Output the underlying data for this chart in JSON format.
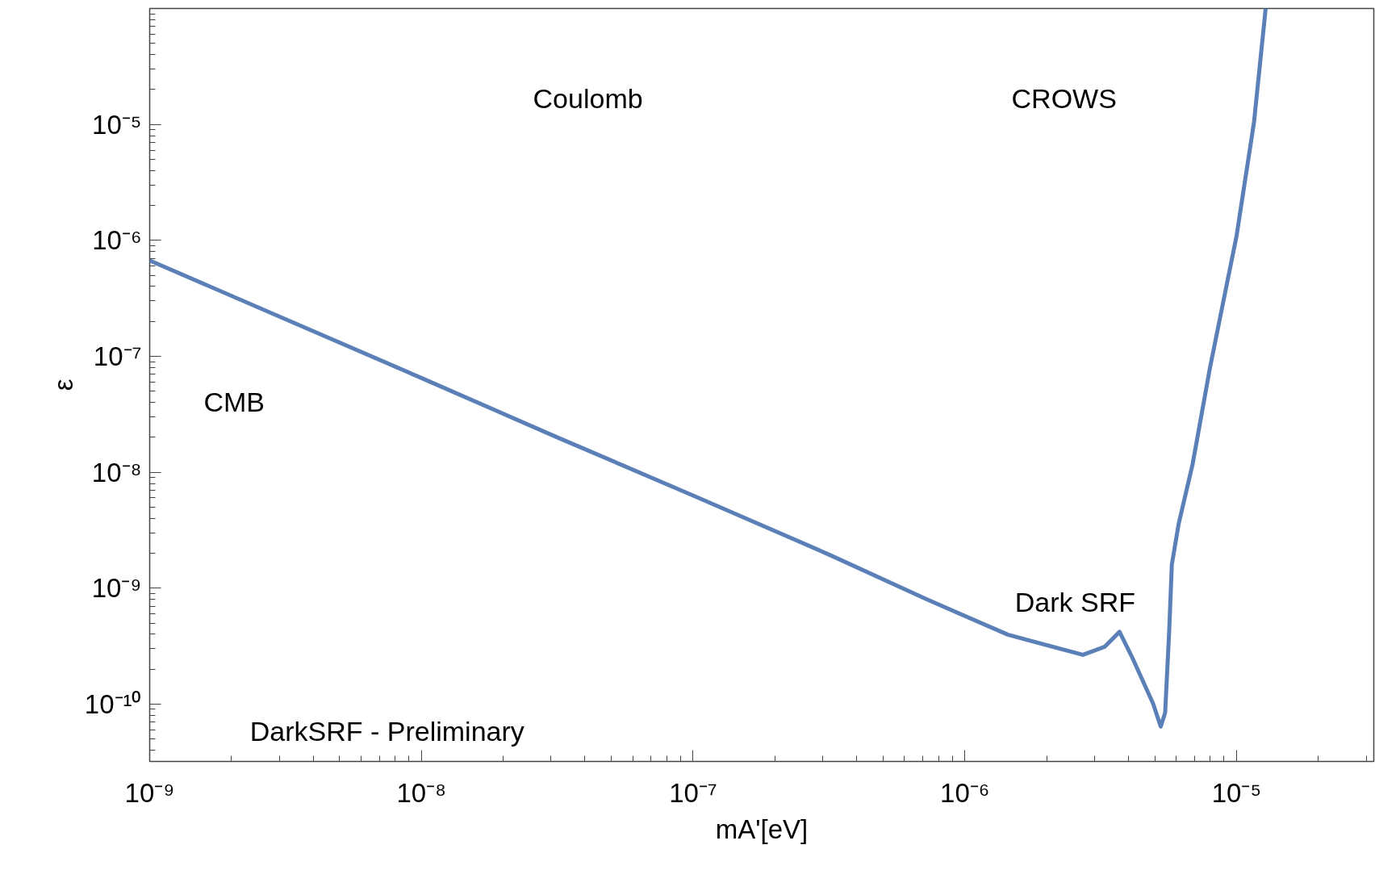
{
  "chart_data": {
    "type": "line",
    "xlabel": "mA'[eV]",
    "ylabel": "ε",
    "log": "xy",
    "x": [
      1e-09,
      3.16e-09,
      1e-08,
      3.16e-08,
      1e-07,
      3.16e-07,
      7.26e-07,
      1.44e-06,
      2.72e-06,
      3.27e-06,
      3.71e-06,
      4.11e-06,
      4.93e-06,
      5.26e-06,
      5.46e-06,
      5.65e-06,
      5.78e-06,
      6.12e-06,
      6.89e-06,
      7.98e-06,
      1e-05,
      1.16e-05,
      1.28e-05
    ],
    "series": [
      {
        "color": "#5b80b8",
        "values": [
          6.7e-07,
          2.09e-07,
          6.5e-08,
          2e-08,
          6.3e-09,
          1.95e-09,
          7.98e-10,
          3.97e-10,
          2.66e-10,
          3.12e-10,
          4.2e-10,
          2.59e-10,
          1.01e-10,
          6.4e-11,
          8.4e-11,
          4.2e-10,
          1.6e-09,
          3.56e-09,
          1.17e-08,
          7.9e-08,
          1.09e-06,
          1.05e-05,
          0.0001
        ]
      }
    ],
    "xlim": [
      1e-09,
      3.2e-05
    ],
    "ylim": [
      3.2e-11,
      0.0001
    ],
    "xticks": [
      {
        "value": 1e-09,
        "label": "10⁻⁹"
      },
      {
        "value": 1e-08,
        "label": "10⁻⁸"
      },
      {
        "value": 1e-07,
        "label": "10⁻⁷"
      },
      {
        "value": 1e-06,
        "label": "10⁻⁶"
      },
      {
        "value": 1e-05,
        "label": "10⁻⁵"
      }
    ],
    "yticks": [
      {
        "value": 1e-10,
        "label": "10⁻¹⁰"
      },
      {
        "value": 1e-09,
        "label": "10⁻⁹"
      },
      {
        "value": 1e-08,
        "label": "10⁻⁸"
      },
      {
        "value": 1e-07,
        "label": "10⁻⁷"
      },
      {
        "value": 1e-06,
        "label": "10⁻⁶"
      },
      {
        "value": 1e-05,
        "label": "10⁻⁵"
      }
    ],
    "grid": false,
    "marker": "none",
    "line_style": "solid",
    "annotations": [
      "Coulomb",
      "CROWS",
      "CMB",
      "Dark SRF",
      "DarkSRF - Preliminary"
    ]
  }
}
